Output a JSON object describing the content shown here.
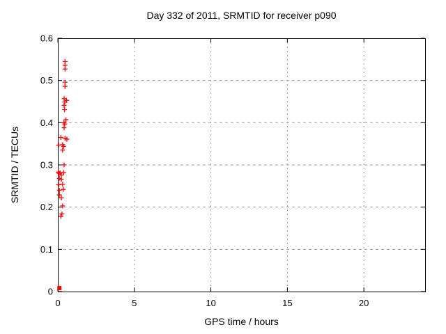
{
  "chart_data": {
    "type": "scatter",
    "title": "Day 332 of 2011, SRMTID for receiver p090",
    "xlabel": "GPS time / hours",
    "ylabel": "SRMTID / TECUs",
    "xlim": [
      0,
      24
    ],
    "ylim": [
      0,
      0.6
    ],
    "xticks": [
      0,
      5,
      10,
      15,
      20
    ],
    "yticks": [
      0,
      0.1,
      0.2,
      0.3,
      0.4,
      0.5,
      0.6
    ],
    "grid": true,
    "legend": "none",
    "axis_color": "#000000",
    "grid_color": "#9c9c9c",
    "point_color": "#ff0000",
    "series": [
      {
        "name": "srmtid-values",
        "marker": "plus",
        "color": "#ff0000",
        "points": [
          [
            0.47,
            0.545
          ],
          [
            0.47,
            0.536
          ],
          [
            0.47,
            0.527
          ],
          [
            0.47,
            0.496
          ],
          [
            0.47,
            0.486
          ],
          [
            0.41,
            0.457
          ],
          [
            0.57,
            0.453
          ],
          [
            0.46,
            0.449
          ],
          [
            0.41,
            0.441
          ],
          [
            0.44,
            0.431
          ],
          [
            0.53,
            0.407
          ],
          [
            0.4,
            0.4
          ],
          [
            0.45,
            0.397
          ],
          [
            0.41,
            0.388
          ],
          [
            0.2,
            0.365
          ],
          [
            0.47,
            0.363
          ],
          [
            0.59,
            0.361
          ],
          [
            0.05,
            0.347
          ],
          [
            0.31,
            0.348
          ],
          [
            0.38,
            0.344
          ],
          [
            0.31,
            0.335
          ],
          [
            0.41,
            0.3
          ],
          [
            0.03,
            0.283
          ],
          [
            0.08,
            0.28
          ],
          [
            0.15,
            0.281
          ],
          [
            0.38,
            0.282
          ],
          [
            0.23,
            0.276
          ],
          [
            0.23,
            0.266
          ],
          [
            0.1,
            0.268
          ],
          [
            0.31,
            0.254
          ],
          [
            0.05,
            0.253
          ],
          [
            0.35,
            0.242
          ],
          [
            0.1,
            0.24
          ],
          [
            0.1,
            0.229
          ],
          [
            0.23,
            0.222
          ],
          [
            0.31,
            0.203
          ],
          [
            0.27,
            0.184
          ],
          [
            0.2,
            0.178
          ]
        ]
      },
      {
        "name": "origin-marker",
        "marker": "filled-square",
        "color": "#ff0000",
        "points": [
          [
            0.1,
            0.008
          ]
        ]
      }
    ]
  }
}
